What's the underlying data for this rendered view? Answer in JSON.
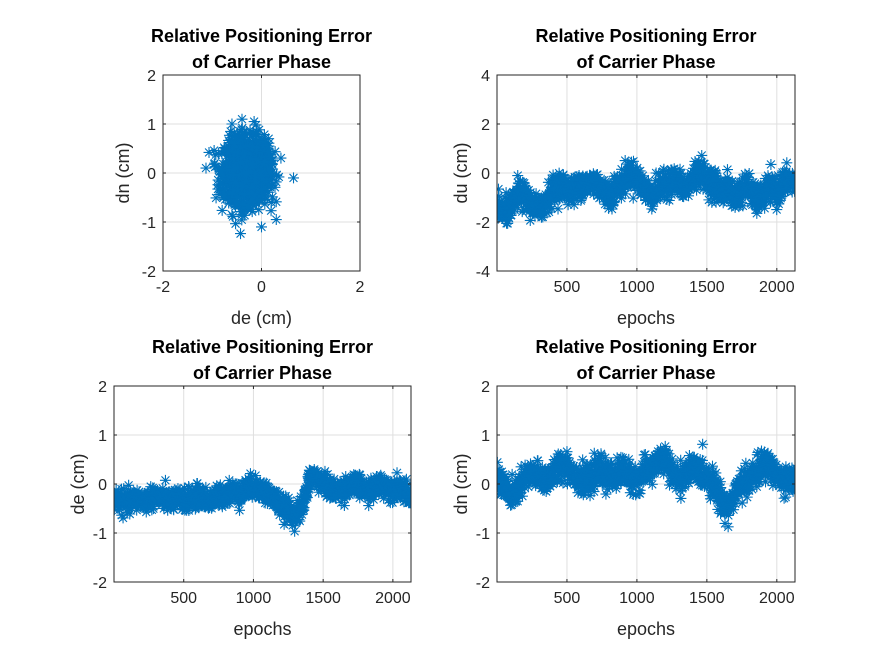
{
  "chart_data": [
    {
      "type": "scatter",
      "title": [
        "Relative Positioning Error",
        "of Carrier Phase"
      ],
      "xlabel": "de (cm)",
      "ylabel": "dn (cm)",
      "xlim": [
        -2,
        2
      ],
      "ylim": [
        -2,
        2
      ],
      "xticks": [
        -2,
        0,
        2
      ],
      "yticks": [
        -2,
        -1,
        0,
        1,
        2
      ],
      "grid": true,
      "marker": "*",
      "color": "#0072bd",
      "cluster": {
        "x_center": -0.3,
        "y_center": 0.05,
        "x_std": 0.22,
        "y_std": 0.32,
        "n": 2130
      },
      "series": [
        {
          "x": [
            -0.95,
            -0.6,
            -0.15,
            0.0,
            0.3,
            0.65,
            -0.1,
            -0.4,
            -0.75,
            0.15,
            -0.55,
            0.2,
            -0.3
          ],
          "y": [
            0.2,
            1.0,
            1.05,
            -1.1,
            -0.95,
            -0.1,
            0.85,
            -0.85,
            -0.45,
            0.55,
            0.6,
            -0.6,
            0.0
          ]
        }
      ]
    },
    {
      "type": "scatter",
      "title": [
        "Relative Positioning Error",
        "of Carrier Phase"
      ],
      "xlabel": "epochs",
      "ylabel": "du (cm)",
      "xlim": [
        0,
        2130
      ],
      "ylim": [
        -4,
        4
      ],
      "xticks": [
        500,
        1000,
        1500,
        2000
      ],
      "yticks": [
        -4,
        -2,
        0,
        2,
        4
      ],
      "grid": true,
      "marker": "*",
      "color": "#0072bd",
      "series": [
        {
          "x": [
            0,
            50,
            100,
            150,
            200,
            250,
            300,
            350,
            400,
            450,
            500,
            550,
            600,
            650,
            700,
            750,
            800,
            850,
            900,
            950,
            1000,
            1050,
            1100,
            1150,
            1200,
            1250,
            1300,
            1350,
            1400,
            1450,
            1500,
            1550,
            1600,
            1650,
            1700,
            1750,
            1800,
            1850,
            1900,
            1950,
            2000,
            2050,
            2100,
            2130
          ],
          "y": [
            -1.4,
            -1.6,
            -1.5,
            -0.8,
            -1.0,
            -1.3,
            -1.5,
            -1.1,
            -0.7,
            -0.5,
            -0.6,
            -0.8,
            -0.4,
            -0.5,
            -0.3,
            -0.7,
            -0.9,
            -0.6,
            -0.4,
            0.0,
            -0.2,
            -0.6,
            -0.9,
            -0.7,
            -0.5,
            -0.3,
            -0.4,
            -0.7,
            -0.2,
            0.1,
            -0.3,
            -0.4,
            -0.8,
            -0.6,
            -1.0,
            -0.7,
            -0.5,
            -1.2,
            -0.9,
            -0.6,
            -0.8,
            -0.4,
            -0.3,
            -0.5
          ]
        }
      ],
      "spread": 0.55
    },
    {
      "type": "scatter",
      "title": [
        "Relative Positioning Error",
        "of Carrier Phase"
      ],
      "xlabel": "epochs",
      "ylabel": "de (cm)",
      "xlim": [
        0,
        2130
      ],
      "ylim": [
        -2,
        2
      ],
      "xticks": [
        500,
        1000,
        1500,
        2000
      ],
      "yticks": [
        -2,
        -1,
        0,
        1,
        2
      ],
      "grid": true,
      "marker": "*",
      "color": "#0072bd",
      "series": [
        {
          "x": [
            0,
            50,
            100,
            150,
            200,
            250,
            300,
            350,
            400,
            450,
            500,
            550,
            600,
            650,
            700,
            750,
            800,
            850,
            900,
            950,
            1000,
            1050,
            1100,
            1150,
            1200,
            1250,
            1300,
            1350,
            1400,
            1450,
            1500,
            1550,
            1600,
            1650,
            1700,
            1750,
            1800,
            1850,
            1900,
            1950,
            2000,
            2050,
            2100,
            2130
          ],
          "y": [
            -0.3,
            -0.35,
            -0.4,
            -0.3,
            -0.35,
            -0.3,
            -0.25,
            -0.3,
            -0.35,
            -0.3,
            -0.35,
            -0.3,
            -0.25,
            -0.3,
            -0.35,
            -0.25,
            -0.2,
            -0.15,
            -0.2,
            -0.1,
            -0.05,
            -0.1,
            -0.2,
            -0.3,
            -0.45,
            -0.55,
            -0.65,
            -0.5,
            0.1,
            0.15,
            0.0,
            -0.1,
            -0.15,
            -0.1,
            0.0,
            -0.05,
            -0.1,
            -0.15,
            0.0,
            -0.05,
            -0.1,
            -0.05,
            -0.2,
            -0.3
          ]
        }
      ],
      "spread": 0.22
    },
    {
      "type": "scatter",
      "title": [
        "Relative Positioning Error",
        "of Carrier Phase"
      ],
      "xlabel": "epochs",
      "ylabel": "dn (cm)",
      "xlim": [
        0,
        2130
      ],
      "ylim": [
        -2,
        2
      ],
      "xticks": [
        500,
        1000,
        1500,
        2000
      ],
      "yticks": [
        -2,
        -1,
        0,
        1,
        2
      ],
      "grid": true,
      "marker": "*",
      "color": "#0072bd",
      "series": [
        {
          "x": [
            0,
            50,
            100,
            150,
            200,
            250,
            300,
            350,
            400,
            450,
            500,
            550,
            600,
            650,
            700,
            750,
            800,
            850,
            900,
            950,
            1000,
            1050,
            1100,
            1150,
            1200,
            1250,
            1300,
            1350,
            1400,
            1450,
            1500,
            1550,
            1600,
            1650,
            1700,
            1750,
            1800,
            1850,
            1900,
            1950,
            2000,
            2050,
            2100,
            2130
          ],
          "y": [
            0.1,
            0.0,
            -0.3,
            -0.1,
            0.1,
            0.2,
            0.15,
            0.1,
            0.2,
            0.35,
            0.4,
            0.2,
            0.1,
            0.0,
            0.2,
            0.3,
            0.1,
            0.2,
            0.3,
            0.15,
            0.1,
            0.2,
            0.3,
            0.45,
            0.5,
            0.2,
            0.1,
            0.2,
            0.3,
            0.25,
            0.15,
            0.0,
            -0.3,
            -0.5,
            -0.2,
            0.0,
            0.1,
            0.2,
            0.4,
            0.35,
            0.2,
            0.0,
            0.1,
            0.0
          ]
        }
      ],
      "spread": 0.28
    }
  ]
}
